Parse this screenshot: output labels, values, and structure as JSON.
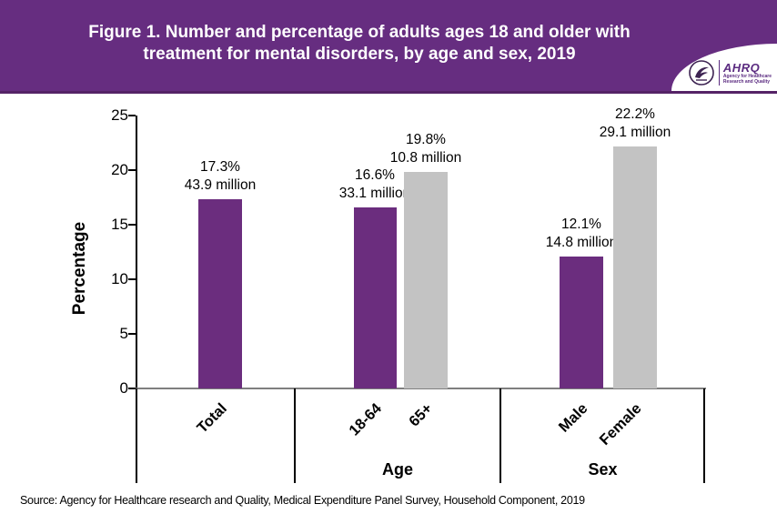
{
  "header": {
    "title_line1": "Figure 1. Number and percentage of adults ages 18 and older with",
    "title_line2": "treatment for mental disorders, by age and sex, 2019",
    "logo": {
      "acronym": "AHRQ",
      "tagline_line1": "Agency for Healthcare",
      "tagline_line2": "Research and Quality"
    }
  },
  "chart_data": {
    "type": "bar",
    "title": "Figure 1. Number and percentage of adults ages 18 and older with treatment for mental disorders, by age and sex, 2019",
    "xlabel": "",
    "ylabel": "Percentage",
    "ylim": [
      0,
      25
    ],
    "yticks": [
      0,
      5,
      10,
      15,
      20,
      25
    ],
    "grid": false,
    "legend": "none",
    "categories": [
      "Total",
      "18-64",
      "65+",
      "Male",
      "Female"
    ],
    "values_percent": [
      17.3,
      16.6,
      19.8,
      12.1,
      22.2
    ],
    "values_millions": [
      43.9,
      33.1,
      10.8,
      14.8,
      29.1
    ],
    "colors": {
      "purple": "#6B2D7E",
      "gray": "#C3C3C3"
    },
    "groups": [
      {
        "label": "",
        "bars": [
          {
            "category": "Total",
            "percent": 17.3,
            "label_line1": "17.3%",
            "label_line2": "43.9 million",
            "color": "purple"
          }
        ]
      },
      {
        "label": "Age",
        "bars": [
          {
            "category": "18-64",
            "percent": 16.6,
            "label_line1": "16.6%",
            "label_line2": "33.1 million",
            "color": "purple"
          },
          {
            "category": "65+",
            "percent": 19.8,
            "label_line1": "19.8%",
            "label_line2": "10.8 million",
            "color": "gray"
          }
        ]
      },
      {
        "label": "Sex",
        "bars": [
          {
            "category": "Male",
            "percent": 12.1,
            "label_line1": "12.1%",
            "label_line2": "14.8 million",
            "color": "purple"
          },
          {
            "category": "Female",
            "percent": 22.2,
            "label_line1": "22.2%",
            "label_line2": "29.1 million",
            "color": "gray"
          }
        ]
      }
    ]
  },
  "source": "Source: Agency for Healthcare research and Quality, Medical Expenditure Panel Survey,  Household Component, 2019"
}
